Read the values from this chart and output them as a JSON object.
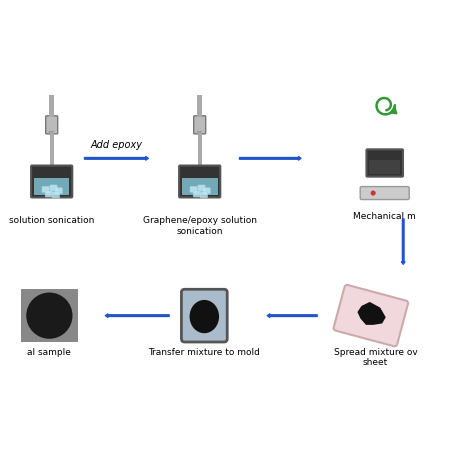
{
  "background_color": "#ffffff",
  "arrow_color": "#2255cc",
  "labels": {
    "step1": "solution sonication",
    "step2": "Graphene/epoxy solution\nsonication",
    "step3": "Mechanical m",
    "step4": "Spread mixture ov\nsheet",
    "step5": "Transfer mixture to mold",
    "step6": "al sample"
  },
  "add_epoxy_label": "Add epoxy",
  "colors": {
    "beaker_outer": "#555555",
    "beaker_inner": "#333333",
    "beaker_liquid": "#7fbfcf",
    "probe_body": "#aaaaaa",
    "probe_tip": "#888888",
    "hotplate_body": "#cccccc",
    "hotplate_dot": "#cc3333",
    "mold_inner": "#aabbcc",
    "mold_hole": "#111111",
    "spread_sheet": "#f0d8dc",
    "spread_blob": "#111111",
    "sample_bg": "#888888",
    "sample_circle": "#1a1a1a",
    "green_arrow": "#339933"
  }
}
